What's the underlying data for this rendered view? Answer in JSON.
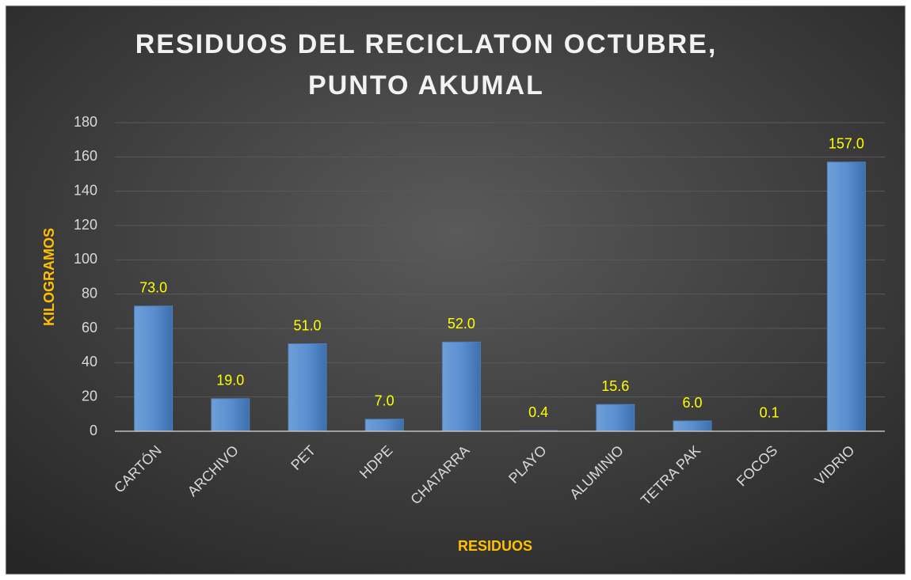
{
  "chart_data": {
    "type": "bar",
    "title": [
      "RESIDUOS DEL RECICLATON OCTUBRE,",
      "PUNTO AKUMAL"
    ],
    "x_label": "RESIDUOS",
    "y_label": "KILOGRAMOS",
    "categories": [
      "CARTÓN",
      "ARCHIVO",
      "PET",
      "HDPE",
      "CHATARRA",
      "PLAYO",
      "ALUMINIO",
      "TETRA PAK",
      "FOCOS",
      "VIDRIO"
    ],
    "values": [
      73,
      19,
      51,
      7,
      52,
      0.4,
      15.6,
      6,
      0.1,
      157
    ],
    "value_labels": [
      "73.0",
      "19.0",
      "51.0",
      "7.0",
      "52.0",
      "0.4",
      "15.6",
      "6.0",
      "0.1",
      "157.0"
    ],
    "color": "#4f81bd",
    "ylim": [
      0,
      180
    ],
    "yticks": [
      0,
      20,
      40,
      60,
      80,
      100,
      120,
      140,
      160,
      180
    ],
    "grid": true
  }
}
